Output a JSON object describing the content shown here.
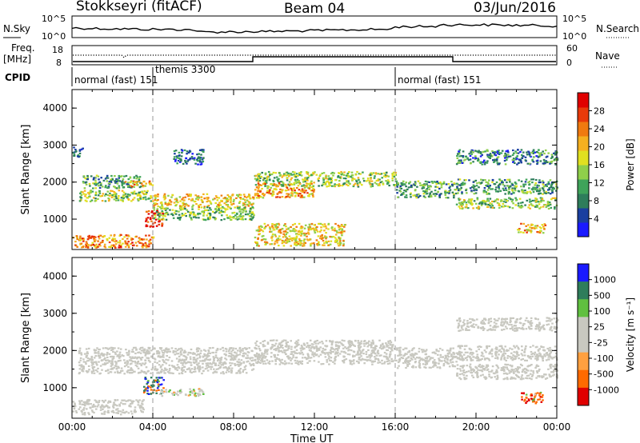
{
  "header": {
    "station": "Stokkseyri (fitACF)",
    "beam": "Beam 04",
    "date": "03/Jun/2016"
  },
  "top_panels": {
    "nsky_label": "N.Sky",
    "nsearch_label": "N.Search",
    "freq_label": "Freq.",
    "freq_unit": "[MHz]",
    "nave_label": "Nave",
    "cpid_label": "CPID",
    "left_ticks_noise": [
      "10^5",
      "10^0"
    ],
    "right_ticks_noise": [
      "10^5",
      "10^0"
    ],
    "left_ticks_freq": [
      "18",
      "8"
    ],
    "right_ticks_nave": [
      "60",
      "0"
    ]
  },
  "cpid_segments": [
    {
      "label": "normal (fast)",
      "code": "151",
      "start_h": 0,
      "end_h": 4.0
    },
    {
      "label": "themis",
      "code": "3300",
      "start_h": 4.0,
      "end_h": 16.0
    },
    {
      "label": "normal (fast)",
      "code": "151",
      "start_h": 16.0,
      "end_h": 24.0
    }
  ],
  "colors": {
    "power_scale": [
      "#1a1aff",
      "#1a3fa0",
      "#2e7d5b",
      "#3fa35a",
      "#8fcf4a",
      "#e0e020",
      "#f5b020",
      "#f07a10",
      "#e83a0a",
      "#e00000"
    ],
    "velocity_scale": [
      "#e00000",
      "#ff6a00",
      "#ffa040",
      "#c8c8c0",
      "#c8c8c0",
      "#60c040",
      "#2e7d5b",
      "#1a1aff"
    ],
    "ground_scatter": "#c8c8c0"
  },
  "chart_data": [
    {
      "type": "heatmap",
      "title": "",
      "xlabel": "Time UT",
      "ylabel": "Slant Range [km]",
      "x_ticks": [
        "00:00",
        "04:00",
        "08:00",
        "12:00",
        "16:00",
        "20:00",
        "00:00"
      ],
      "x_range_hours": [
        0,
        24
      ],
      "y_ticks": [
        "1000",
        "2000",
        "3000",
        "4000"
      ],
      "ylim": [
        180,
        4500
      ],
      "colorbar_label": "Power [dB]",
      "colorbar_ticks": [
        "4",
        "8",
        "12",
        "16",
        "20",
        "24",
        "28"
      ],
      "colorbar_range": [
        0,
        30
      ],
      "dashed_lines_hours": [
        4.0,
        16.0
      ],
      "bands": [
        {
          "t": [
            0.0,
            0.5
          ],
          "r": [
            2700,
            3000
          ],
          "v": 8
        },
        {
          "t": [
            0.3,
            4.0
          ],
          "r": [
            1500,
            1800
          ],
          "v": 14
        },
        {
          "t": [
            0.5,
            3.5
          ],
          "r": [
            1850,
            2200
          ],
          "v": 10
        },
        {
          "t": [
            2.5,
            4.0
          ],
          "r": [
            1900,
            2050
          ],
          "v": 20
        },
        {
          "t": [
            3.6,
            4.5
          ],
          "r": [
            800,
            1250
          ],
          "v": 28
        },
        {
          "t": [
            4.0,
            9.0
          ],
          "r": [
            1350,
            1700
          ],
          "v": 18
        },
        {
          "t": [
            4.0,
            9.0
          ],
          "r": [
            1000,
            1350
          ],
          "v": 12
        },
        {
          "t": [
            5.0,
            6.5
          ],
          "r": [
            2500,
            2900
          ],
          "v": 6
        },
        {
          "t": [
            0.0,
            4.0
          ],
          "r": [
            250,
            600
          ],
          "v": 22
        },
        {
          "t": [
            9.0,
            16.0
          ],
          "r": [
            1900,
            2300
          ],
          "v": 14
        },
        {
          "t": [
            9.0,
            12.0
          ],
          "r": [
            1600,
            2000
          ],
          "v": 20
        },
        {
          "t": [
            9.0,
            13.5
          ],
          "r": [
            300,
            900
          ],
          "v": 18
        },
        {
          "t": [
            16.0,
            19.0
          ],
          "r": [
            1600,
            2050
          ],
          "v": 10
        },
        {
          "t": [
            19.0,
            24.0
          ],
          "r": [
            1300,
            1600
          ],
          "v": 14
        },
        {
          "t": [
            19.0,
            24.0
          ],
          "r": [
            1700,
            2100
          ],
          "v": 10
        },
        {
          "t": [
            19.0,
            24.0
          ],
          "r": [
            2500,
            2900
          ],
          "v": 8
        },
        {
          "t": [
            22.0,
            23.5
          ],
          "r": [
            650,
            900
          ],
          "v": 20
        }
      ]
    },
    {
      "type": "heatmap",
      "title": "",
      "xlabel": "Time UT",
      "ylabel": "Slant Range [km]",
      "x_ticks": [
        "00:00",
        "04:00",
        "08:00",
        "12:00",
        "16:00",
        "20:00",
        "00:00"
      ],
      "x_range_hours": [
        0,
        24
      ],
      "y_ticks": [
        "1000",
        "2000",
        "3000",
        "4000"
      ],
      "ylim": [
        180,
        4500
      ],
      "colorbar_label": "Velocity [m s⁻¹]",
      "colorbar_ticks": [
        "1000",
        "500",
        "100",
        "25",
        "-25",
        "-100",
        "-500",
        "-1000"
      ],
      "dashed_lines_hours": [
        4.0,
        16.0
      ],
      "bands": [
        {
          "t": [
            0.3,
            9.0
          ],
          "r": [
            1400,
            2100
          ],
          "v": 0
        },
        {
          "t": [
            9.0,
            16.0
          ],
          "r": [
            1650,
            2300
          ],
          "v": 0
        },
        {
          "t": [
            16.0,
            19.0
          ],
          "r": [
            1550,
            2100
          ],
          "v": 0
        },
        {
          "t": [
            19.0,
            24.0
          ],
          "r": [
            1250,
            1650
          ],
          "v": 0
        },
        {
          "t": [
            19.0,
            24.0
          ],
          "r": [
            1750,
            2150
          ],
          "v": 0
        },
        {
          "t": [
            19.0,
            24.0
          ],
          "r": [
            2550,
            2900
          ],
          "v": 0
        },
        {
          "t": [
            3.5,
            4.5
          ],
          "r": [
            850,
            1300
          ],
          "v": 1000
        },
        {
          "t": [
            4.3,
            6.5
          ],
          "r": [
            800,
            1000
          ],
          "v": 100
        },
        {
          "t": [
            0.0,
            3.5
          ],
          "r": [
            300,
            700
          ],
          "v": 0
        },
        {
          "t": [
            22.2,
            23.3
          ],
          "r": [
            600,
            900
          ],
          "v": -500
        }
      ]
    }
  ]
}
